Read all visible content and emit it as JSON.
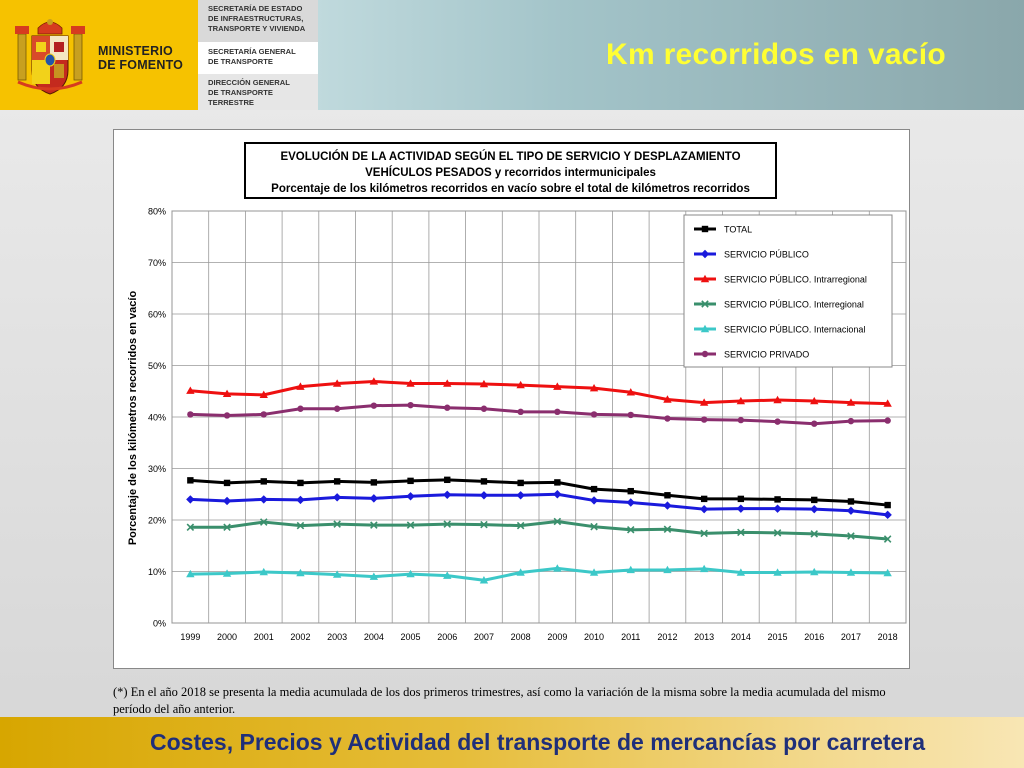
{
  "header": {
    "ministry_line1": "MINISTERIO",
    "ministry_line2": "DE FOMENTO",
    "dept1_lines": [
      "SECRETARÍA DE ESTADO",
      "DE INFRAESTRUCTURAS,",
      "TRANSPORTE Y VIVIENDA"
    ],
    "dept2_lines": [
      "SECRETARÍA GENERAL",
      "DE TRANSPORTE"
    ],
    "dept3_lines": [
      "DIRECCIÓN GENERAL",
      "DE TRANSPORTE",
      "TERRESTRE"
    ],
    "page_title": "Km recorridos en vacío"
  },
  "chart_data": {
    "type": "line",
    "title_lines": [
      "EVOLUCIÓN  DE  LA  ACTIVIDAD  SEGÚN  EL  TIPO  DE  SERVICIO  Y  DESPLAZAMIENTO",
      "VEHÍCULOS  PESADOS  y  recorridos  intermunicipales",
      "Porcentaje de los kilómetros recorridos en vacío sobre el total de kilómetros recorridos"
    ],
    "xlabel": "",
    "ylabel": "Porcentaje de los kilómetros recorridos en vacío",
    "categories": [
      "1999",
      "2000",
      "2001",
      "2002",
      "2003",
      "2004",
      "2005",
      "2006",
      "2007",
      "2008",
      "2009",
      "2010",
      "2011",
      "2012",
      "2013",
      "2014",
      "2015",
      "2016",
      "2017",
      "2018"
    ],
    "ylim": [
      0,
      80
    ],
    "yticks": [
      0,
      10,
      20,
      30,
      40,
      50,
      60,
      70,
      80
    ],
    "ytick_suffix": "%",
    "grid": true,
    "legend_position": "top-right",
    "series": [
      {
        "name": "TOTAL",
        "color": "#000000",
        "marker": "square",
        "values": [
          27.7,
          27.2,
          27.5,
          27.2,
          27.5,
          27.3,
          27.6,
          27.8,
          27.5,
          27.2,
          27.3,
          26.0,
          25.6,
          24.8,
          24.1,
          24.1,
          24.0,
          23.9,
          23.6,
          22.9
        ]
      },
      {
        "name": "SERVICIO PÚBLICO",
        "color": "#1a1adc",
        "marker": "diamond",
        "values": [
          24.0,
          23.7,
          24.0,
          23.9,
          24.4,
          24.2,
          24.6,
          24.9,
          24.8,
          24.8,
          25.0,
          23.8,
          23.4,
          22.8,
          22.1,
          22.2,
          22.2,
          22.1,
          21.8,
          21.0
        ]
      },
      {
        "name": "SERVICIO PÚBLICO. Intrarregional",
        "color": "#ee1010",
        "marker": "triangle",
        "values": [
          45.1,
          44.5,
          44.3,
          45.9,
          46.5,
          46.9,
          46.5,
          46.5,
          46.4,
          46.2,
          45.9,
          45.6,
          44.8,
          43.4,
          42.8,
          43.1,
          43.3,
          43.1,
          42.8,
          42.6
        ]
      },
      {
        "name": "SERVICIO PÚBLICO. Interregional",
        "color": "#3a8f6c",
        "marker": "x",
        "values": [
          18.6,
          18.6,
          19.6,
          18.9,
          19.2,
          19.0,
          19.0,
          19.2,
          19.1,
          18.9,
          19.7,
          18.7,
          18.1,
          18.2,
          17.4,
          17.6,
          17.5,
          17.3,
          16.9,
          16.3
        ]
      },
      {
        "name": "SERVICIO PÚBLICO. Internacional",
        "color": "#3cc8c8",
        "marker": "triangle",
        "values": [
          9.5,
          9.6,
          9.9,
          9.7,
          9.4,
          9.0,
          9.5,
          9.2,
          8.3,
          9.8,
          10.6,
          9.8,
          10.3,
          10.3,
          10.5,
          9.8,
          9.8,
          9.9,
          9.8,
          9.7
        ]
      },
      {
        "name": "SERVICIO PRIVADO",
        "color": "#8a2e6e",
        "marker": "circle",
        "values": [
          40.5,
          40.3,
          40.5,
          41.6,
          41.6,
          42.2,
          42.3,
          41.8,
          41.6,
          41.0,
          41.0,
          40.5,
          40.4,
          39.7,
          39.5,
          39.4,
          39.1,
          38.7,
          39.2,
          39.3
        ]
      }
    ]
  },
  "footnote": "(*) En el año 2018 se presenta la media acumulada de los dos primeros trimestres, así como la variación de la misma sobre la media acumulada del mismo período del año anterior.",
  "footer": {
    "title": "Costes, Precios y Actividad del transporte de mercancías por carretera"
  }
}
